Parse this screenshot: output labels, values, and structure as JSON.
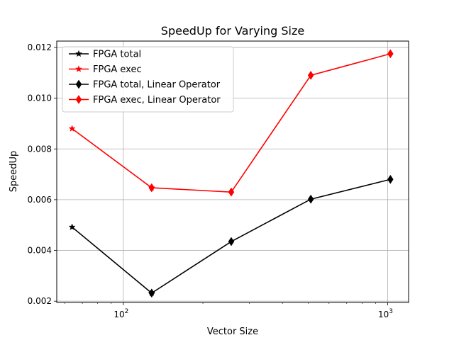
{
  "chart_data": {
    "type": "line",
    "title": "SpeedUp for Varying Size",
    "xlabel": "Vector Size",
    "ylabel": "SpeedUp",
    "xscale": "log",
    "xlim": [
      56,
      1200
    ],
    "ylim": [
      0.00195,
      0.01225
    ],
    "grid": true,
    "legend_position": "top-left",
    "x_ticks": [
      {
        "value": 100,
        "base": "10",
        "exp": "2"
      },
      {
        "value": 1000,
        "base": "10",
        "exp": "3"
      }
    ],
    "y_ticks": [
      {
        "value": 0.002,
        "label": "0.002"
      },
      {
        "value": 0.004,
        "label": "0.004"
      },
      {
        "value": 0.006,
        "label": "0.006"
      },
      {
        "value": 0.008,
        "label": "0.008"
      },
      {
        "value": 0.01,
        "label": "0.010"
      },
      {
        "value": 0.012,
        "label": "0.012"
      }
    ],
    "series": [
      {
        "name": "FPGA total",
        "color": "#000000",
        "marker": "star",
        "x": [
          64,
          128
        ],
        "y": [
          0.00492,
          0.00232
        ]
      },
      {
        "name": "FPGA exec",
        "color": "#ff0000",
        "marker": "star",
        "x": [
          64,
          128
        ],
        "y": [
          0.0088,
          0.00647
        ]
      },
      {
        "name": "FPGA total, Linear Operator",
        "color": "#000000",
        "marker": "diamond",
        "x": [
          128,
          256,
          512,
          1024
        ],
        "y": [
          0.00232,
          0.00435,
          0.00602,
          0.0068
        ]
      },
      {
        "name": "FPGA exec, Linear Operator",
        "color": "#ff0000",
        "marker": "diamond",
        "x": [
          128,
          256,
          512,
          1024
        ],
        "y": [
          0.00647,
          0.0063,
          0.0109,
          0.01175
        ]
      }
    ]
  }
}
